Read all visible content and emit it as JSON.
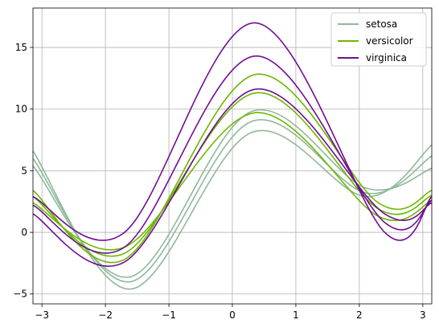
{
  "chart_data": {
    "type": "line",
    "subtype": "andrews-curves",
    "title": "",
    "xlabel": "",
    "ylabel": "",
    "xlim": [
      -3.1416,
      3.1416
    ],
    "ylim": [
      -5.8,
      18.2
    ],
    "grid": true,
    "legend_position": "top-right",
    "x_ticks": [
      -3,
      -2,
      -1,
      0,
      1,
      2,
      3
    ],
    "y_ticks": [
      -5,
      0,
      5,
      10,
      15
    ],
    "series": [
      {
        "name": "setosa",
        "color": "#8fb89b",
        "curves": [
          {
            "x": [
              -3.1416,
              -1.6,
              0.3,
              2.1,
              3.1416
            ],
            "y": [
              6.6,
              -4.6,
              8.1,
              2.9,
              7.1
            ]
          },
          {
            "x": [
              -3.1416,
              -1.6,
              0.3,
              2.1,
              3.1416
            ],
            "y": [
              5.4,
              -3.6,
              9.8,
              3.6,
              5.2
            ]
          },
          {
            "x": [
              -3.1416,
              -1.6,
              0.3,
              2.1,
              3.1416
            ],
            "y": [
              6.0,
              -4.0,
              9.0,
              3.2,
              6.2
            ]
          }
        ]
      },
      {
        "name": "versicolor",
        "color": "#6cb800",
        "curves": [
          {
            "x": [
              -3.1416,
              -1.7,
              0.35,
              2.3,
              3.1416
            ],
            "y": [
              3.4,
              -2.2,
              12.8,
              2.4,
              3.4
            ]
          },
          {
            "x": [
              -3.1416,
              -1.7,
              0.35,
              2.3,
              3.1416
            ],
            "y": [
              2.4,
              -1.2,
              9.7,
              1.3,
              2.6
            ]
          },
          {
            "x": [
              -3.1416,
              -1.7,
              0.35,
              2.3,
              3.1416
            ],
            "y": [
              2.9,
              -1.7,
              11.3,
              1.9,
              3.0
            ]
          }
        ]
      },
      {
        "name": "virginica",
        "color": "#720e91",
        "curves": [
          {
            "x": [
              -3.1416,
              -1.7,
              0.35,
              2.4,
              3.1416
            ],
            "y": [
              2.9,
              0.0,
              17.0,
              0.0,
              2.9
            ]
          },
          {
            "x": [
              -3.1416,
              -1.7,
              0.35,
              2.4,
              3.1416
            ],
            "y": [
              1.5,
              -2.4,
              11.6,
              1.5,
              2.4
            ]
          },
          {
            "x": [
              -3.1416,
              -1.7,
              0.35,
              2.4,
              3.1416
            ],
            "y": [
              2.2,
              -1.2,
              14.3,
              0.8,
              2.6
            ]
          }
        ]
      }
    ]
  }
}
